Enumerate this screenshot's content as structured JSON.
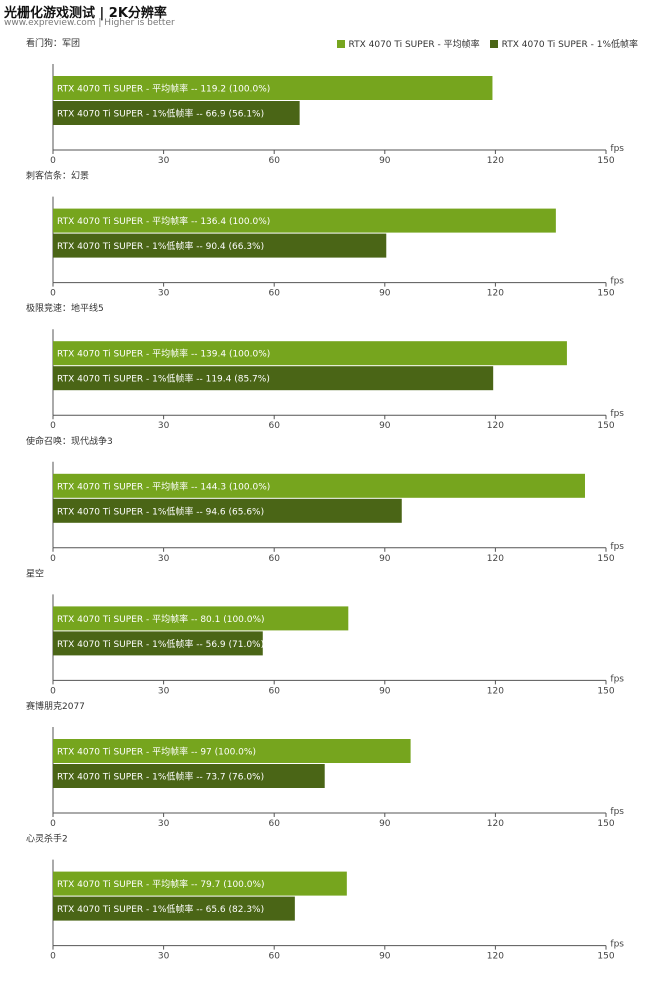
{
  "header": {
    "title": "光栅化游戏测试 | 2K分辨率",
    "subtitle": "www.expreview.com | Higher is better"
  },
  "colors": {
    "avg": "#76a51e",
    "low": "#4a6516",
    "axis": "#555555"
  },
  "legend": [
    {
      "label": "RTX 4070 Ti SUPER - 平均帧率",
      "color": "#76a51e"
    },
    {
      "label": "RTX 4070 Ti SUPER - 1%低帧率",
      "color": "#4a6516"
    }
  ],
  "chart_data": [
    {
      "type": "bar",
      "title": "看门狗：军团",
      "xlabel": "fps",
      "xlim": [
        0,
        150
      ],
      "ticks": [
        0,
        30,
        60,
        90,
        120,
        150
      ],
      "series": [
        {
          "name": "RTX 4070 Ti SUPER - 平均帧率",
          "value": 119.2,
          "pct": "100.0%"
        },
        {
          "name": "RTX 4070 Ti SUPER - 1%低帧率",
          "value": 66.9,
          "pct": "56.1%"
        }
      ]
    },
    {
      "type": "bar",
      "title": "刺客信条：幻景",
      "xlabel": "fps",
      "xlim": [
        0,
        150
      ],
      "ticks": [
        0,
        30,
        60,
        90,
        120,
        150
      ],
      "series": [
        {
          "name": "RTX 4070 Ti SUPER - 平均帧率",
          "value": 136.4,
          "pct": "100.0%"
        },
        {
          "name": "RTX 4070 Ti SUPER - 1%低帧率",
          "value": 90.4,
          "pct": "66.3%"
        }
      ]
    },
    {
      "type": "bar",
      "title": "极限竞速：地平线5",
      "xlabel": "fps",
      "xlim": [
        0,
        150
      ],
      "ticks": [
        0,
        30,
        60,
        90,
        120,
        150
      ],
      "series": [
        {
          "name": "RTX 4070 Ti SUPER - 平均帧率",
          "value": 139.4,
          "pct": "100.0%"
        },
        {
          "name": "RTX 4070 Ti SUPER - 1%低帧率",
          "value": 119.4,
          "pct": "85.7%"
        }
      ]
    },
    {
      "type": "bar",
      "title": "使命召唤：现代战争3",
      "xlabel": "fps",
      "xlim": [
        0,
        150
      ],
      "ticks": [
        0,
        30,
        60,
        90,
        120,
        150
      ],
      "series": [
        {
          "name": "RTX 4070 Ti SUPER - 平均帧率",
          "value": 144.3,
          "pct": "100.0%"
        },
        {
          "name": "RTX 4070 Ti SUPER - 1%低帧率",
          "value": 94.6,
          "pct": "65.6%"
        }
      ]
    },
    {
      "type": "bar",
      "title": "星空",
      "xlabel": "fps",
      "xlim": [
        0,
        150
      ],
      "ticks": [
        0,
        30,
        60,
        90,
        120,
        150
      ],
      "series": [
        {
          "name": "RTX 4070 Ti SUPER - 平均帧率",
          "value": 80.1,
          "pct": "100.0%"
        },
        {
          "name": "RTX 4070 Ti SUPER - 1%低帧率",
          "value": 56.9,
          "pct": "71.0%"
        }
      ]
    },
    {
      "type": "bar",
      "title": "赛博朋克2077",
      "xlabel": "fps",
      "xlim": [
        0,
        150
      ],
      "ticks": [
        0,
        30,
        60,
        90,
        120,
        150
      ],
      "series": [
        {
          "name": "RTX 4070 Ti SUPER - 平均帧率",
          "value": 97,
          "pct": "100.0%"
        },
        {
          "name": "RTX 4070 Ti SUPER - 1%低帧率",
          "value": 73.7,
          "pct": "76.0%"
        }
      ]
    },
    {
      "type": "bar",
      "title": "心灵杀手2",
      "xlabel": "fps",
      "xlim": [
        0,
        150
      ],
      "ticks": [
        0,
        30,
        60,
        90,
        120,
        150
      ],
      "series": [
        {
          "name": "RTX 4070 Ti SUPER - 平均帧率",
          "value": 79.7,
          "pct": "100.0%"
        },
        {
          "name": "RTX 4070 Ti SUPER - 1%低帧率",
          "value": 65.6,
          "pct": "82.3%"
        }
      ]
    }
  ]
}
